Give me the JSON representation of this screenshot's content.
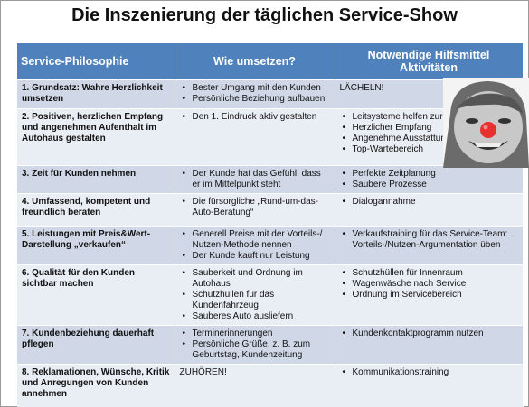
{
  "header": {
    "title": "Die Inszenierung der täglichen Service-Show"
  },
  "table": {
    "columns": [
      "Service-Philosophie",
      "Wie umsetzen?",
      "Notwendige Hilfsmittel Aktivitäten"
    ],
    "rows": [
      {
        "topic": "1. Grundsatz: Wahre Herzlichkeit umsetzen",
        "how": [
          "Bester Umgang mit den Kunden",
          "Persönliche Beziehung aufbauen"
        ],
        "tools": "LÄCHELN!"
      },
      {
        "topic": "2. Positiven, herzlichen Empfang und angenehmen Aufenthalt im Autohaus gestalten",
        "how": [
          "Den 1. Eindruck aktiv gestalten"
        ],
        "tools": [
          "Leitsysteme helfen zur Orientierung",
          "Herzlicher Empfang",
          "Angenehme Ausstattung",
          "Top-Wartebereich"
        ]
      },
      {
        "topic": "3. Zeit für Kunden nehmen",
        "how": [
          "Der Kunde hat das Gefühl, dass er im Mittelpunkt steht"
        ],
        "tools": [
          "Perfekte Zeitplanung",
          "Saubere Prozesse"
        ]
      },
      {
        "topic": "4. Umfassend, kompetent und freundlich beraten",
        "how": [
          "Die fürsorgliche „Rund-um-das-Auto-Beratung“"
        ],
        "tools": [
          "Dialogannahme"
        ]
      },
      {
        "topic": "5. Leistungen mit Preis&Wert-Darstellung „verkaufen“",
        "how": [
          "Generell Preise mit der Vorteils-/ Nutzen-Methode nennen",
          "Der Kunde kauft nur Leistung"
        ],
        "tools": [
          "Verkaufstraining für das Service-Team: Vorteils-/Nutzen-Argumentation üben"
        ]
      },
      {
        "topic": "6. Qualität für den Kunden sichtbar machen",
        "how": [
          "Sauberkeit und Ordnung im Autohaus",
          "Schutzhüllen für das Kundenfahrzeug",
          "Sauberes Auto ausliefern"
        ],
        "tools": [
          "Schutzhüllen für Innenraum",
          "Wagenwäsche nach Service",
          "Ordnung im Servicebereich"
        ]
      },
      {
        "topic": "7. Kundenbeziehung dauerhaft pflegen",
        "how": [
          "Terminerinnerungen",
          "Persönliche Grüße, z. B. zum Geburtstag, Kundenzeitung"
        ],
        "tools": [
          "Kundenkontaktprogramm nutzen"
        ]
      },
      {
        "topic": "8. Reklamationen, Wünsche, Kritik und Anregungen von Kunden annehmen",
        "how": "ZUHÖREN!",
        "tools": [
          "Kommunikationstraining"
        ]
      }
    ]
  }
}
